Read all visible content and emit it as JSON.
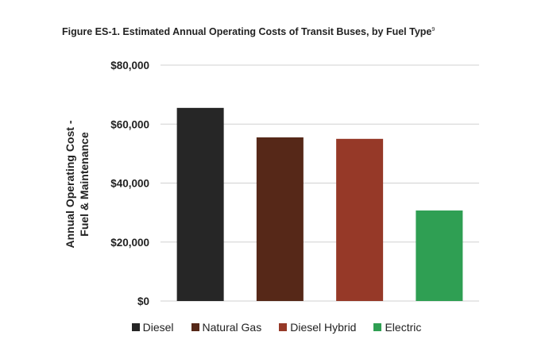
{
  "chart_data": {
    "type": "bar",
    "title": "Figure ES-1. Estimated Annual Operating Costs of Transit Buses, by Fuel Type",
    "title_footnote": "9",
    "ylabel_line1": "Annual Operating Cost -",
    "ylabel_line2": "Fuel & Maintenance",
    "xlabel": "",
    "categories": [
      "Diesel",
      "Natural Gas",
      "Diesel Hybrid",
      "Electric"
    ],
    "values": [
      65500,
      55500,
      55000,
      30700
    ],
    "ylim": [
      0,
      80000
    ],
    "yticks": [
      0,
      20000,
      40000,
      60000,
      80000
    ],
    "ytick_labels": [
      "$0",
      "$20,000",
      "$40,000",
      "$60,000",
      "$80,000"
    ],
    "colors": [
      "#262626",
      "#562818",
      "#963928",
      "#2f9f53"
    ],
    "grid": true,
    "legend_position": "bottom"
  }
}
